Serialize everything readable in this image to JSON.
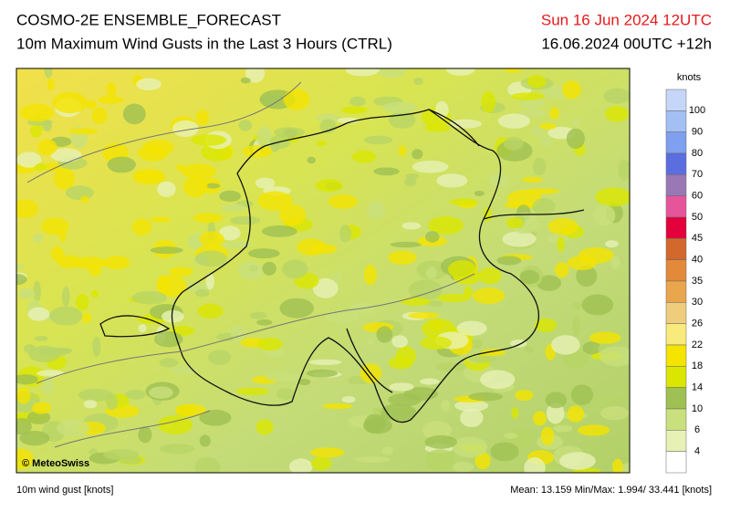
{
  "header": {
    "title": "COSMO-2E ENSEMBLE_FORECAST",
    "subtitle": "10m Maximum Wind Gusts in the Last 3 Hours (CTRL)",
    "valid_time": "Sun 16 Jun 2024 12UTC",
    "run_time": "16.06.2024 00UTC +12h"
  },
  "map": {
    "credit": "© MeteoSwiss"
  },
  "legend": {
    "unit": "knots",
    "labels": [
      100,
      90,
      80,
      70,
      60,
      50,
      45,
      40,
      35,
      30,
      26,
      22,
      18,
      14,
      10,
      6,
      4
    ],
    "colors": [
      "#c6d6f8",
      "#a3c0f4",
      "#7f9ff0",
      "#5b6ee0",
      "#9a78b6",
      "#e6559a",
      "#e4003a",
      "#d2682c",
      "#e28a3a",
      "#eaa64c",
      "#efcd7c",
      "#f9ea7c",
      "#f4e400",
      "#dbe600",
      "#9fc052",
      "#c9e07c",
      "#e7f1b6",
      "#ffffff"
    ]
  },
  "footer": {
    "left": "10m wind gust [knots]",
    "right": "Mean:  13.159 Min/Max:  1.994/ 33.441 [knots]"
  }
}
